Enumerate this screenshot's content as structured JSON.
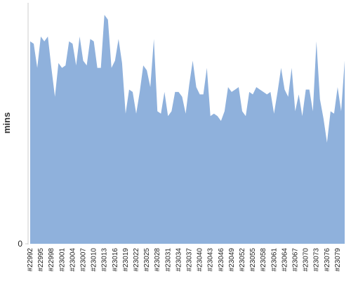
{
  "chart_data": {
    "type": "area",
    "y_label": "mins",
    "categories": [
      "#22992",
      null,
      null,
      "#22995",
      null,
      null,
      "#22998",
      null,
      null,
      "#23001",
      null,
      null,
      "#23004",
      null,
      null,
      "#23007",
      null,
      null,
      "#23010",
      null,
      null,
      "#23013",
      null,
      null,
      "#23016",
      null,
      null,
      "#23019",
      null,
      null,
      "#23022",
      null,
      null,
      "#23025",
      null,
      null,
      "#23028",
      null,
      null,
      "#23031",
      null,
      null,
      "#23034",
      null,
      null,
      "#23037",
      null,
      null,
      "#23040",
      null,
      null,
      "#23043",
      null,
      null,
      "#23046",
      null,
      null,
      "#23049",
      null,
      null,
      "#23052",
      null,
      null,
      "#23055",
      null,
      null,
      "#23058",
      null,
      null,
      "#23061",
      null,
      null,
      "#23064",
      null,
      null,
      "#23067",
      null,
      null,
      "#23070",
      null,
      null,
      "#23073",
      null,
      null,
      "#23076",
      null,
      null,
      "#23079",
      null,
      null
    ],
    "values": [
      84,
      83,
      73,
      86,
      84,
      86,
      73,
      61,
      75,
      73,
      74,
      84,
      83,
      74,
      86,
      76,
      74,
      85,
      84,
      73,
      73,
      95,
      93,
      73,
      76,
      85,
      75,
      54,
      64,
      63,
      54,
      63,
      74,
      72,
      65,
      85,
      55,
      54,
      63,
      53,
      55,
      63,
      63,
      61,
      54,
      66,
      76,
      65,
      62,
      62,
      73,
      53,
      54,
      53,
      51,
      55,
      65,
      63,
      64,
      65,
      55,
      53,
      63,
      62,
      65,
      64,
      63,
      62,
      63,
      54,
      63,
      73,
      64,
      61,
      73,
      55,
      62,
      53,
      64,
      64,
      55,
      84,
      60,
      52,
      42,
      55,
      54,
      65,
      55,
      76
    ],
    "color": "#8fb1dc",
    "ylim": [
      0,
      100
    ],
    "yticks": [
      0
    ]
  }
}
